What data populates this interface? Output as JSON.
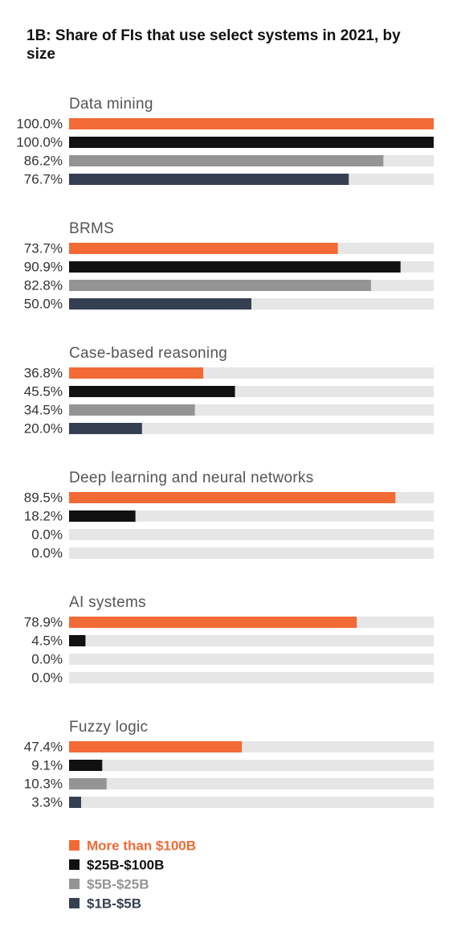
{
  "chart_data": {
    "type": "bar",
    "orientation": "horizontal",
    "title": "1B: Share of FIs that use select systems in 2021, by size",
    "categories": [
      "Data mining",
      "BRMS",
      "Case-based reasoning",
      "Deep learning and neural networks",
      "AI systems",
      "Fuzzy logic"
    ],
    "xlim": [
      0,
      100
    ],
    "track_color": "#e6e6e6",
    "series": [
      {
        "name": "More than $100B",
        "color": "#f26a35",
        "values": [
          100,
          73.7,
          36.8,
          89.5,
          78.9,
          47.4
        ],
        "value_labels": [
          "100.0%",
          "73.7%",
          "36.8%",
          "89.5%",
          "78.9%",
          "47.4%"
        ]
      },
      {
        "name": "$25B-$100B",
        "color": "#111111",
        "values": [
          100,
          90.9,
          45.5,
          18.2,
          4.5,
          9.1
        ],
        "value_labels": [
          "100.0%",
          "90.9%",
          "45.5%",
          "18.2%",
          "4.5%",
          "9.1%"
        ]
      },
      {
        "name": "$5B-$25B",
        "color": "#949494",
        "values": [
          86.2,
          82.8,
          34.5,
          0,
          0,
          10.3
        ],
        "value_labels": [
          "86.2%",
          "82.8%",
          "34.5%",
          "0.0%",
          "0.0%",
          "10.3%"
        ]
      },
      {
        "name": "$1B-$5B",
        "color": "#353f52",
        "values": [
          76.7,
          50,
          20,
          0,
          0,
          3.3
        ],
        "value_labels": [
          "76.7%",
          "50.0%",
          "20.0%",
          "0.0%",
          "0.0%",
          "3.3%"
        ]
      }
    ]
  }
}
